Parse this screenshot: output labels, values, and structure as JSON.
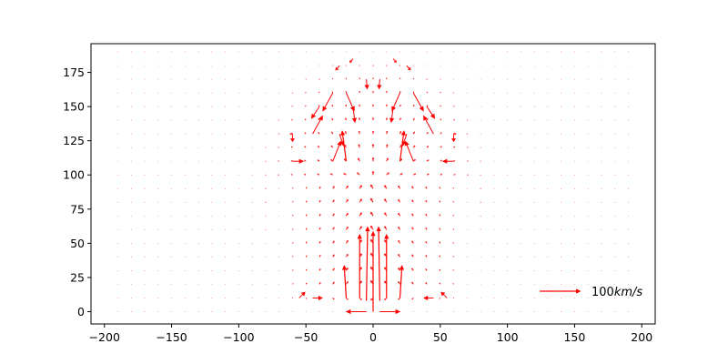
{
  "chart_data": {
    "type": "quiver",
    "title": "",
    "xlabel": "",
    "ylabel": "",
    "xlim": [
      -210,
      210
    ],
    "ylim": [
      -9,
      196
    ],
    "x_ticks": [
      -200,
      -150,
      -100,
      -50,
      0,
      50,
      100,
      150,
      200
    ],
    "x_tick_labels": [
      "−200",
      "−150",
      "−100",
      "−50",
      "0",
      "50",
      "100",
      "150",
      "200"
    ],
    "y_ticks": [
      0,
      25,
      50,
      75,
      100,
      125,
      150,
      175
    ],
    "y_tick_labels": [
      "0",
      "25",
      "50",
      "75",
      "100",
      "125",
      "150",
      "175"
    ],
    "grid": false,
    "arrow_color": "#ff0000",
    "grid_points": {
      "x_start": -190,
      "x_step": 10,
      "nx": 39,
      "y_start": 0,
      "y_step": 10,
      "ny": 20
    },
    "vector_units": "km/s",
    "vectors": [
      {
        "x": -5,
        "y": 0,
        "u": -50,
        "v": 0
      },
      {
        "x": 5,
        "y": 0,
        "u": 50,
        "v": 0
      },
      {
        "x": 0,
        "y": 0,
        "u": 0,
        "v": 195
      },
      {
        "x": -5,
        "y": 8,
        "u": 3,
        "v": 180
      },
      {
        "x": 5,
        "y": 8,
        "u": -3,
        "v": 180
      },
      {
        "x": -10,
        "y": 10,
        "u": 0,
        "v": 155
      },
      {
        "x": 10,
        "y": 10,
        "u": 0,
        "v": 155
      },
      {
        "x": -20,
        "y": 10,
        "u": -5,
        "v": 80
      },
      {
        "x": 20,
        "y": 10,
        "u": 5,
        "v": 80
      },
      {
        "x": -55,
        "y": 10,
        "u": 15,
        "v": 15
      },
      {
        "x": 55,
        "y": 10,
        "u": -15,
        "v": 15
      },
      {
        "x": -45,
        "y": 10,
        "u": 25,
        "v": 0
      },
      {
        "x": 45,
        "y": 10,
        "u": -25,
        "v": 0
      },
      {
        "x": -20,
        "y": 110,
        "u": -10,
        "v": 75
      },
      {
        "x": 20,
        "y": 110,
        "u": 10,
        "v": 75
      },
      {
        "x": -20,
        "y": 160,
        "u": 20,
        "v": -45
      },
      {
        "x": 20,
        "y": 160,
        "u": -20,
        "v": -45
      },
      {
        "x": -30,
        "y": 160,
        "u": -25,
        "v": -45
      },
      {
        "x": 30,
        "y": 160,
        "u": 25,
        "v": -45
      },
      {
        "x": -40,
        "y": 150,
        "u": -20,
        "v": -30
      },
      {
        "x": 40,
        "y": 150,
        "u": 20,
        "v": -30
      },
      {
        "x": -30,
        "y": 110,
        "u": 20,
        "v": 50
      },
      {
        "x": 30,
        "y": 110,
        "u": -20,
        "v": 50
      },
      {
        "x": -45,
        "y": 130,
        "u": 25,
        "v": 45
      },
      {
        "x": 45,
        "y": 130,
        "u": -25,
        "v": 45
      },
      {
        "x": -60,
        "y": 130,
        "u": 0,
        "v": -20
      },
      {
        "x": 60,
        "y": 130,
        "u": 0,
        "v": -20
      },
      {
        "x": -60,
        "y": 110,
        "u": 28,
        "v": 0
      },
      {
        "x": 60,
        "y": 110,
        "u": -28,
        "v": 0
      },
      {
        "x": -60,
        "y": 130,
        "u": -7,
        "v": 0
      },
      {
        "x": 60,
        "y": 130,
        "u": 7,
        "v": 0
      },
      {
        "x": -5,
        "y": 170,
        "u": 2,
        "v": -25
      },
      {
        "x": 5,
        "y": 170,
        "u": -2,
        "v": -25
      },
      {
        "x": -15,
        "y": 150,
        "u": 5,
        "v": -40
      },
      {
        "x": 15,
        "y": 150,
        "u": -5,
        "v": -40
      },
      {
        "x": -25,
        "y": 130,
        "u": 10,
        "v": -30
      },
      {
        "x": 25,
        "y": 130,
        "u": -10,
        "v": -30
      },
      {
        "x": -15,
        "y": 185,
        "u": -8,
        "v": -10
      },
      {
        "x": 15,
        "y": 185,
        "u": 8,
        "v": -10
      },
      {
        "x": -25,
        "y": 180,
        "u": -10,
        "v": -12
      },
      {
        "x": 25,
        "y": 180,
        "u": 10,
        "v": -12
      }
    ],
    "key": {
      "value": 100,
      "label_number": "100",
      "label_unit": "km/s",
      "position": "lower-right"
    }
  }
}
